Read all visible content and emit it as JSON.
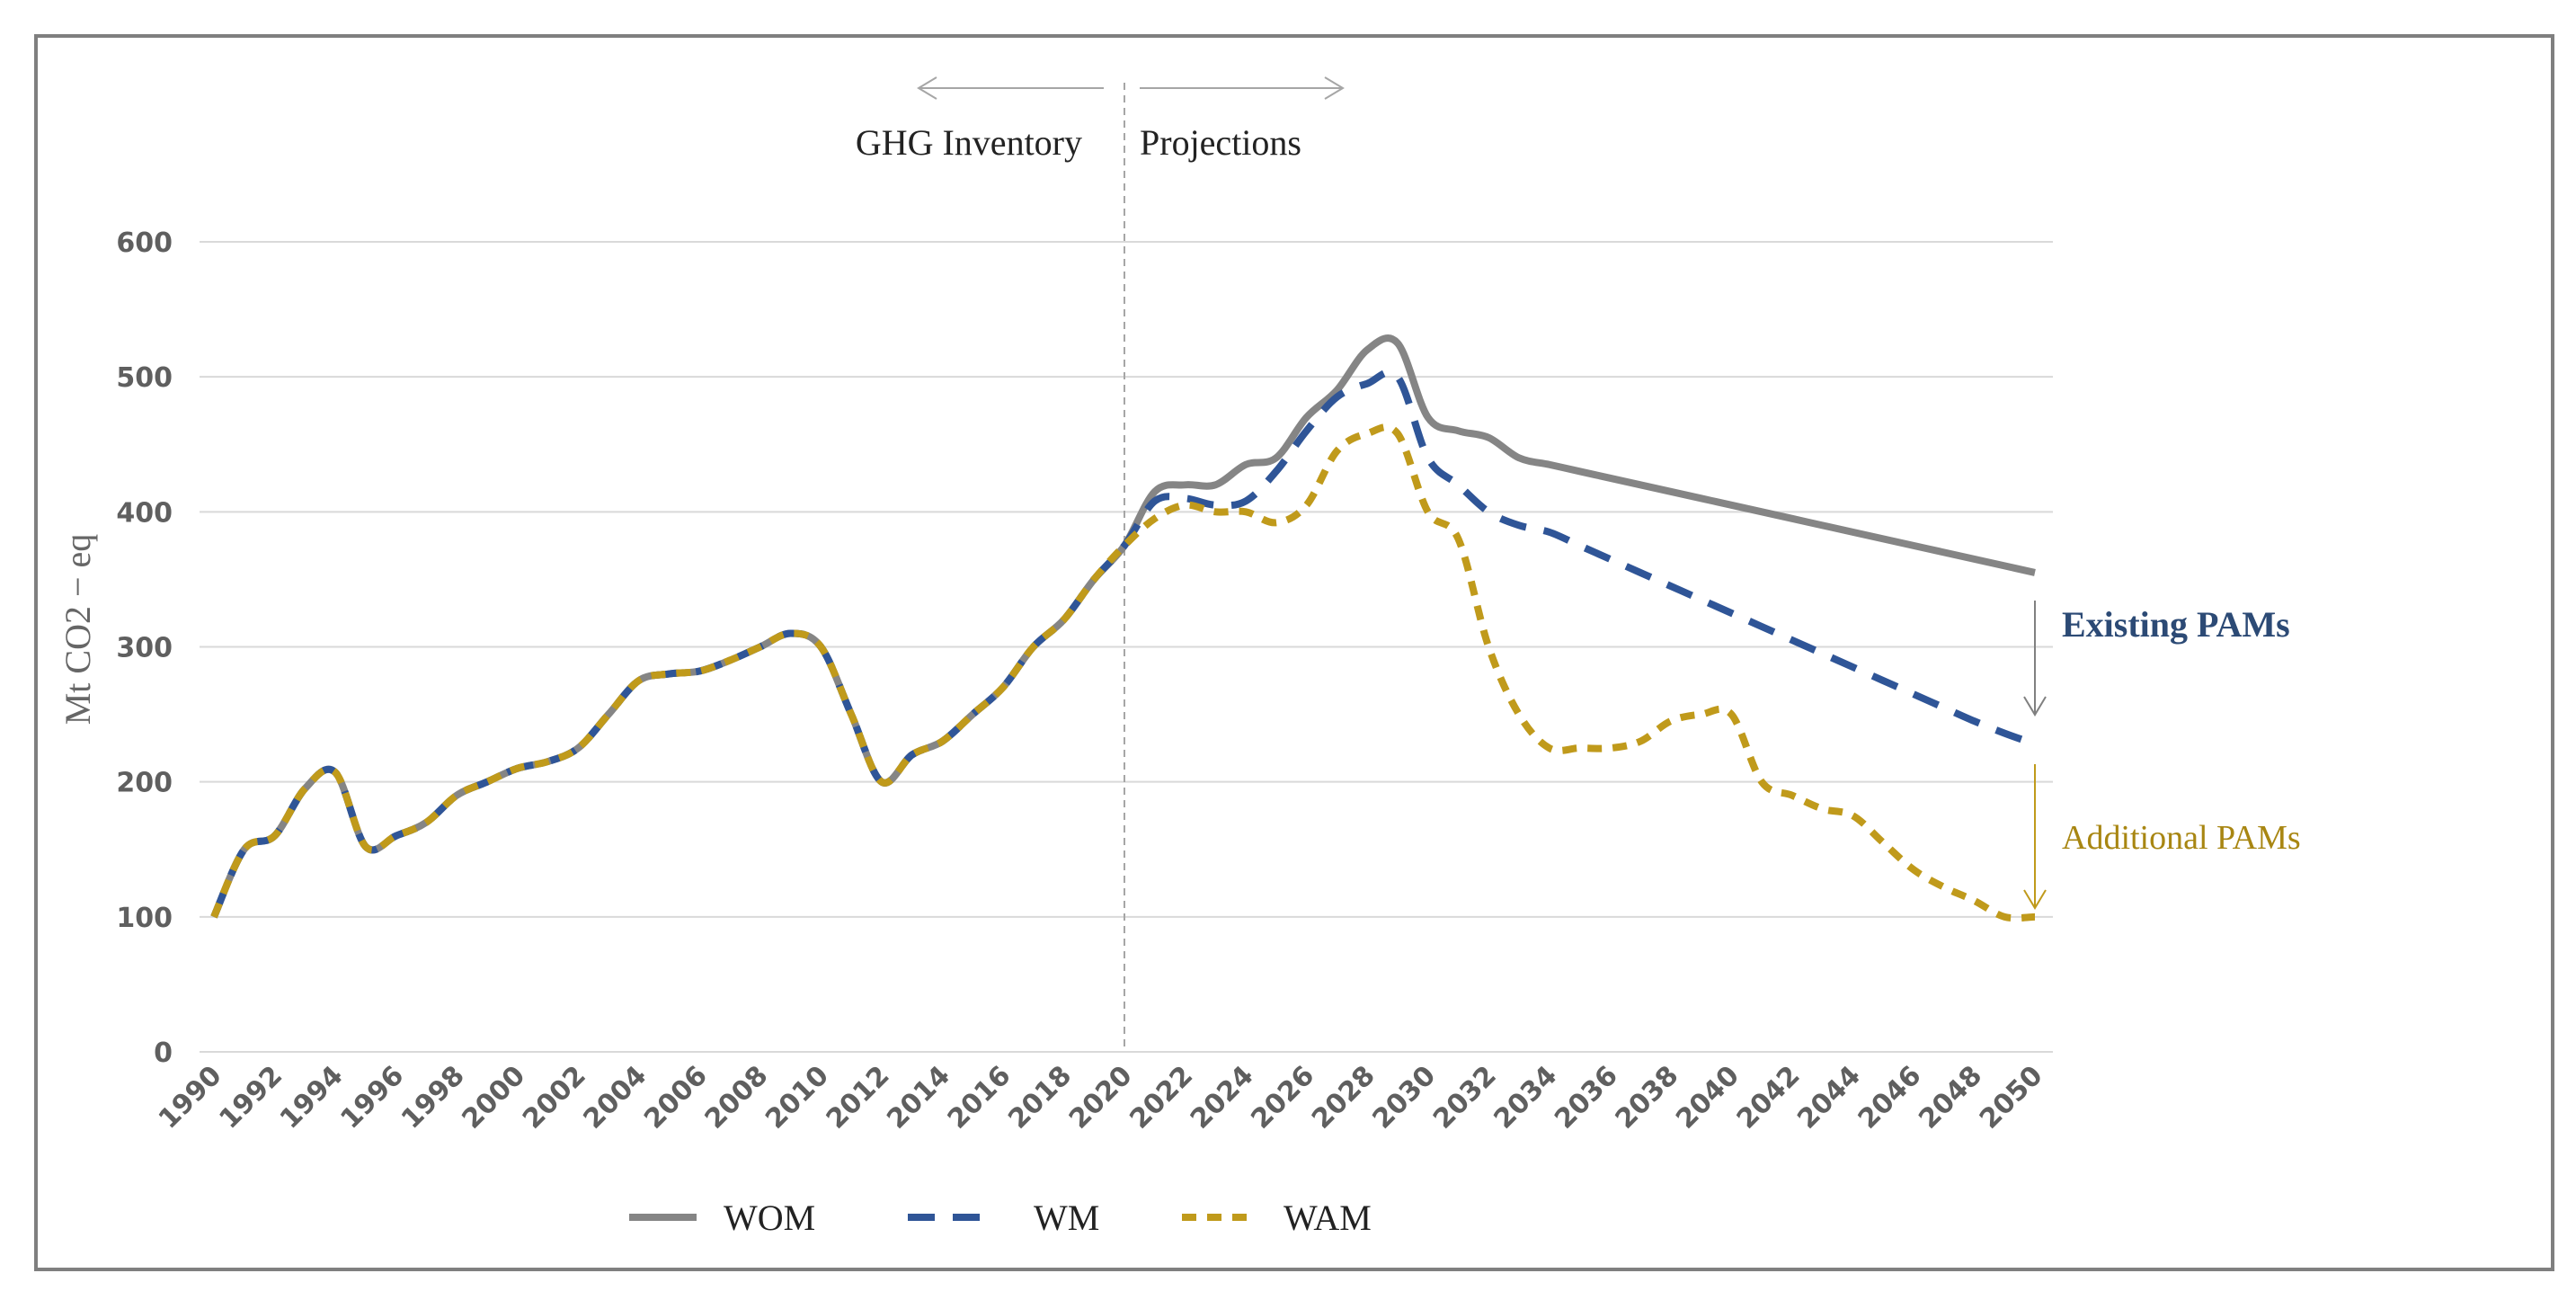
{
  "chart_data": {
    "type": "line",
    "title": "",
    "xlabel": "",
    "ylabel": "Mt CO2 − eq",
    "ylim": [
      0,
      600
    ],
    "yticks": [
      0,
      100,
      200,
      300,
      400,
      500,
      600
    ],
    "grid": true,
    "legend_placement": "bottom-center",
    "x": [
      1990,
      1991,
      1992,
      1993,
      1994,
      1995,
      1996,
      1997,
      1998,
      1999,
      2000,
      2001,
      2002,
      2003,
      2004,
      2005,
      2006,
      2007,
      2008,
      2009,
      2010,
      2011,
      2012,
      2013,
      2014,
      2015,
      2016,
      2017,
      2018,
      2019,
      2020,
      2021,
      2022,
      2023,
      2024,
      2025,
      2026,
      2027,
      2028,
      2029,
      2030,
      2031,
      2032,
      2033,
      2034,
      2035,
      2036,
      2037,
      2038,
      2039,
      2040,
      2041,
      2042,
      2043,
      2044,
      2045,
      2046,
      2047,
      2048,
      2049,
      2050
    ],
    "xticks": [
      "1990",
      "1992",
      "1994",
      "1996",
      "1998",
      "2000",
      "2002",
      "2004",
      "2006",
      "2008",
      "2010",
      "2012",
      "2014",
      "2016",
      "2018",
      "2020",
      "2022",
      "2024",
      "2026",
      "2028",
      "2030",
      "2032",
      "2034",
      "2036",
      "2038",
      "2040",
      "2042",
      "2044",
      "2046",
      "2048",
      "2050"
    ],
    "series": [
      {
        "name": "WOM",
        "color": "#858585",
        "style": "solid",
        "values": [
          100,
          150,
          160,
          195,
          207,
          152,
          160,
          170,
          190,
          200,
          210,
          215,
          225,
          250,
          275,
          280,
          282,
          290,
          300,
          310,
          300,
          250,
          200,
          220,
          230,
          250,
          270,
          300,
          320,
          350,
          375,
          415,
          420,
          420,
          435,
          440,
          470,
          490,
          520,
          525,
          470,
          460,
          455,
          440,
          435,
          430,
          425,
          420,
          415,
          410,
          405,
          400,
          395,
          390,
          385,
          380,
          375,
          370,
          365,
          360,
          355
        ]
      },
      {
        "name": "WM",
        "color": "#2f5597",
        "style": "dash",
        "values": [
          100,
          150,
          160,
          195,
          207,
          152,
          160,
          170,
          190,
          200,
          210,
          215,
          225,
          250,
          275,
          280,
          282,
          290,
          300,
          310,
          300,
          250,
          200,
          220,
          230,
          250,
          270,
          300,
          320,
          350,
          375,
          408,
          410,
          405,
          408,
          430,
          460,
          485,
          495,
          500,
          440,
          420,
          400,
          390,
          385,
          375,
          365,
          355,
          345,
          335,
          325,
          315,
          305,
          295,
          285,
          275,
          265,
          255,
          245,
          236,
          228
        ]
      },
      {
        "name": "WAM",
        "color": "#c09a1b",
        "style": "dot",
        "values": [
          100,
          150,
          160,
          195,
          207,
          152,
          160,
          170,
          190,
          200,
          210,
          215,
          225,
          250,
          275,
          280,
          282,
          290,
          300,
          310,
          300,
          250,
          200,
          220,
          230,
          250,
          270,
          300,
          320,
          350,
          375,
          395,
          405,
          400,
          400,
          392,
          405,
          445,
          458,
          458,
          400,
          380,
          300,
          250,
          225,
          225,
          225,
          230,
          245,
          250,
          250,
          200,
          190,
          180,
          175,
          155,
          135,
          122,
          112,
          100,
          100
        ]
      }
    ],
    "annotations": {
      "inventory_label": "GHG Inventory",
      "projections_label": "Projections",
      "divider_year": 2020,
      "existing_pams": "Existing PAMs",
      "additional_pams": "Additional PAMs"
    }
  }
}
